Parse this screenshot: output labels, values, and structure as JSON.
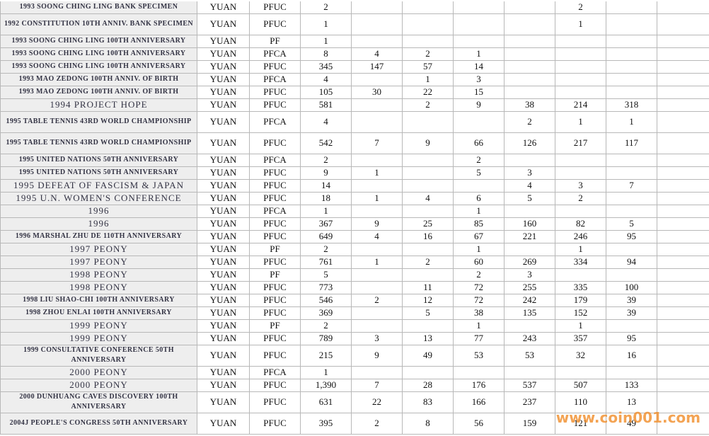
{
  "table": {
    "rows": [
      [
        "1993 SOONG CHING LING BANK SPECIMEN",
        "YUAN",
        "PFUC",
        "2",
        null,
        null,
        null,
        null,
        "2",
        null
      ],
      [
        "1992 CONSTITUTION 10TH ANNIV. BANK SPECIMEN",
        "YUAN",
        "PFUC",
        "1",
        null,
        null,
        null,
        null,
        "1",
        null
      ],
      [
        "1993 SOONG CHING LING 100TH ANNIVERSARY",
        "YUAN",
        "PF",
        "1",
        null,
        null,
        null,
        null,
        null,
        null
      ],
      [
        "1993 SOONG CHING LING 100TH ANNIVERSARY",
        "YUAN",
        "PFCA",
        "8",
        "4",
        "2",
        "1",
        null,
        null,
        null
      ],
      [
        "1993 SOONG CHING LING 100TH ANNIVERSARY",
        "YUAN",
        "PFUC",
        "345",
        "147",
        "57",
        "14",
        null,
        null,
        null
      ],
      [
        "1993 MAO ZEDONG 100TH ANNIV. OF BIRTH",
        "YUAN",
        "PFCA",
        "4",
        null,
        "1",
        "3",
        null,
        null,
        null
      ],
      [
        "1993 MAO ZEDONG 100TH ANNIV. OF BIRTH",
        "YUAN",
        "PFUC",
        "105",
        "30",
        "22",
        "15",
        null,
        null,
        null
      ],
      [
        "1994 PROJECT HOPE",
        "YUAN",
        "PFUC",
        "581",
        null,
        "2",
        "9",
        "38",
        "214",
        "318"
      ],
      [
        "1995 TABLE TENNIS 43RD WORLD CHAMPIONSHIP",
        "YUAN",
        "PFCA",
        "4",
        null,
        null,
        null,
        "2",
        "1",
        "1"
      ],
      [
        "1995 TABLE TENNIS 43RD WORLD CHAMPIONSHIP",
        "YUAN",
        "PFUC",
        "542",
        "7",
        "9",
        "66",
        "126",
        "217",
        "117"
      ],
      [
        "1995 UNITED NATIONS 50TH ANNIVERSARY",
        "YUAN",
        "PFCA",
        "2",
        null,
        null,
        "2",
        null,
        null,
        null
      ],
      [
        "1995 UNITED NATIONS 50TH ANNIVERSARY",
        "YUAN",
        "PFUC",
        "9",
        "1",
        null,
        "5",
        "3",
        null,
        null
      ],
      [
        "1995 DEFEAT OF FASCISM & JAPAN",
        "YUAN",
        "PFUC",
        "14",
        null,
        null,
        null,
        "4",
        "3",
        "7"
      ],
      [
        "1995 U.N. WOMEN'S CONFERENCE",
        "YUAN",
        "PFUC",
        "18",
        "1",
        "4",
        "6",
        "5",
        "2",
        null
      ],
      [
        "1996",
        "YUAN",
        "PFCA",
        "1",
        null,
        null,
        "1",
        null,
        null,
        null
      ],
      [
        "1996",
        "YUAN",
        "PFUC",
        "367",
        "9",
        "25",
        "85",
        "160",
        "82",
        "5"
      ],
      [
        "1996 MARSHAL ZHU DE 110TH ANNIVERSARY",
        "YUAN",
        "PFUC",
        "649",
        "4",
        "16",
        "67",
        "221",
        "246",
        "95"
      ],
      [
        "1997 PEONY",
        "YUAN",
        "PF",
        "2",
        null,
        null,
        "1",
        null,
        "1",
        null
      ],
      [
        "1997 PEONY",
        "YUAN",
        "PFUC",
        "761",
        "1",
        "2",
        "60",
        "269",
        "334",
        "94"
      ],
      [
        "1998 PEONY",
        "YUAN",
        "PF",
        "5",
        null,
        null,
        "2",
        "3",
        null,
        null
      ],
      [
        "1998 PEONY",
        "YUAN",
        "PFUC",
        "773",
        null,
        "11",
        "72",
        "255",
        "335",
        "100"
      ],
      [
        "1998 LIU SHAO-CHI 100TH ANNIVERSARY",
        "YUAN",
        "PFUC",
        "546",
        "2",
        "12",
        "72",
        "242",
        "179",
        "39"
      ],
      [
        "1998 ZHOU ENLAI 100TH ANNIVERSARY",
        "YUAN",
        "PFUC",
        "369",
        null,
        "5",
        "38",
        "135",
        "152",
        "39"
      ],
      [
        "1999 PEONY",
        "YUAN",
        "PF",
        "2",
        null,
        null,
        "1",
        null,
        "1",
        null
      ],
      [
        "1999 PEONY",
        "YUAN",
        "PFUC",
        "789",
        "3",
        "13",
        "77",
        "243",
        "357",
        "95"
      ],
      [
        "1999 CONSULTATIVE CONFERENCE 50TH ANNIVERSARY",
        "YUAN",
        "PFUC",
        "215",
        "9",
        "49",
        "53",
        "53",
        "32",
        "16"
      ],
      [
        "2000 PEONY",
        "YUAN",
        "PFCA",
        "1",
        null,
        null,
        null,
        null,
        null,
        null
      ],
      [
        "2000 PEONY",
        "YUAN",
        "PFUC",
        "1,390",
        "7",
        "28",
        "176",
        "537",
        "507",
        "133"
      ],
      [
        "2000 DUNHUANG CAVES DISCOVERY 100TH ANNIVERSARY",
        "YUAN",
        "PFUC",
        "631",
        "22",
        "83",
        "166",
        "237",
        "110",
        "13"
      ],
      [
        "2004J PEOPLE'S CONGRESS 50TH ANNIVERSARY",
        "YUAN",
        "PFUC",
        "395",
        "2",
        "8",
        "56",
        "159",
        "121",
        "49"
      ]
    ]
  },
  "watermark": "www.coin001.com"
}
